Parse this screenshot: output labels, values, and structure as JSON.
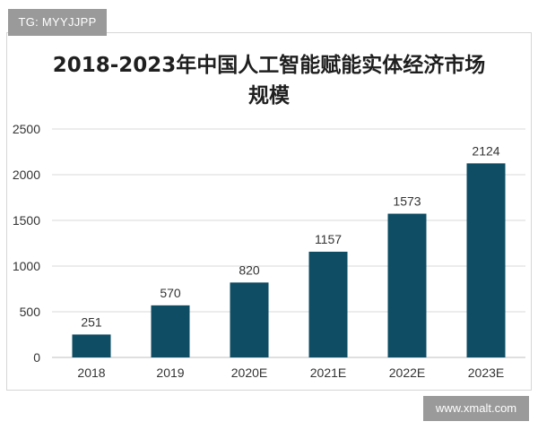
{
  "watermarks": {
    "tag": "TG: MYYJJPP",
    "site": "www.xmalt.com"
  },
  "colors": {
    "bar": "#0e4d63",
    "grid": "#d9d9d9",
    "axis": "#bfbfbf",
    "text": "#333333"
  },
  "chart_data": {
    "type": "bar",
    "title_lines": [
      "2018-2023年中国人工智能赋能实体经济市场",
      "规模"
    ],
    "xlabel": "",
    "ylabel": "",
    "categories": [
      "2018",
      "2019",
      "2020E",
      "2021E",
      "2022E",
      "2023E"
    ],
    "values": [
      251,
      570,
      820,
      1157,
      1573,
      2124
    ],
    "data_labels": [
      "251",
      "570",
      "820",
      "1157",
      "1573",
      "2124"
    ],
    "ylim": [
      0,
      2500
    ],
    "yticks": [
      0,
      500,
      1000,
      1500,
      2000,
      2500
    ],
    "grid": true,
    "legend": "none"
  }
}
